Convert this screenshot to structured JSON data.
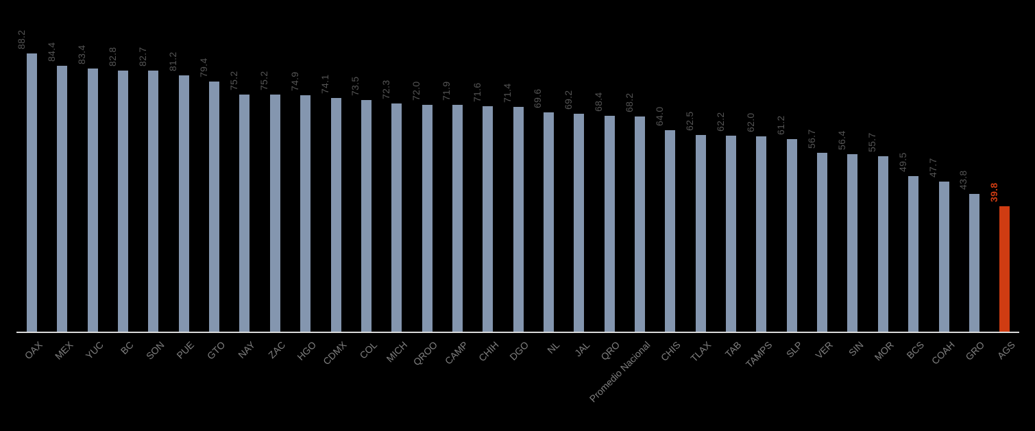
{
  "chart_data": {
    "type": "bar",
    "title": "",
    "xlabel": "",
    "ylabel": "",
    "categories": [
      "OAX",
      "MEX",
      "YUC",
      "BC",
      "SON",
      "PUE",
      "GTO",
      "NAY",
      "ZAC",
      "HGO",
      "CDMX",
      "COL",
      "MICH",
      "QROO",
      "CAMP",
      "CHIH",
      "DGO",
      "NL",
      "JAL",
      "QRO",
      "Promedio Nacional",
      "CHIS",
      "TLAX",
      "TAB",
      "TAMPS",
      "SLP",
      "VER",
      "SIN",
      "MOR",
      "BCS",
      "COAH",
      "GRO",
      "AGS"
    ],
    "values": [
      88.2,
      84.4,
      83.4,
      82.8,
      82.7,
      81.2,
      79.4,
      75.2,
      75.2,
      74.9,
      74.1,
      73.5,
      72.3,
      72.0,
      71.9,
      71.6,
      71.4,
      69.6,
      69.2,
      68.4,
      68.2,
      64.0,
      62.5,
      62.2,
      62.0,
      61.2,
      56.7,
      56.4,
      55.7,
      49.5,
      47.7,
      43.8,
      39.8
    ],
    "value_label_decimals": 1,
    "highlight_category": "AGS",
    "highlight_value": 39.8,
    "ylim": [
      0,
      100
    ],
    "grid": false,
    "legend": "none",
    "value_labels_rotation_deg": 90,
    "category_labels_rotation_deg": 45,
    "colors": {
      "background": "#000000",
      "bar": "#8496af",
      "highlight": "#cf3c12",
      "value_label": "#555555",
      "category_label": "#7f7f7f",
      "axis_line": "#d9d9d9"
    }
  }
}
